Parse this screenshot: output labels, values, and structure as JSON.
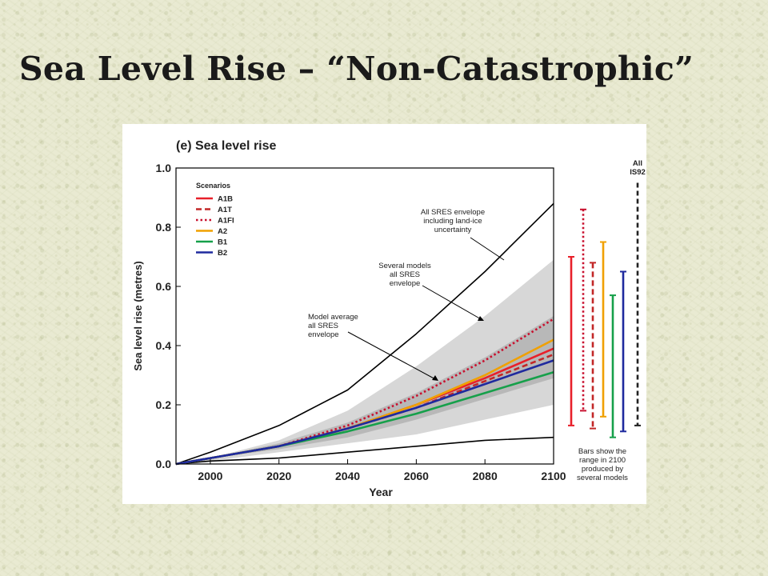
{
  "slide": {
    "title": "Sea Level Rise – “Non-Catastrophic”"
  },
  "chart_data": {
    "type": "line",
    "title": "(e) Sea level rise",
    "xlabel": "Year",
    "ylabel": "Sea level rise (metres)",
    "xlim": [
      1990,
      2100
    ],
    "ylim": [
      0,
      1.0
    ],
    "x_ticks": [
      2000,
      2020,
      2040,
      2060,
      2080,
      2100
    ],
    "y_ticks": [
      "0.0",
      "0.2",
      "0.4",
      "0.6",
      "0.8",
      "1.0"
    ],
    "legend": {
      "title": "Scenarios",
      "placement": "top-left"
    },
    "series": [
      {
        "name": "A1B",
        "color": "#e8202a",
        "style": "solid",
        "x": [
          1990,
          2000,
          2020,
          2040,
          2060,
          2080,
          2100
        ],
        "y": [
          0,
          0.02,
          0.06,
          0.12,
          0.2,
          0.29,
          0.39
        ]
      },
      {
        "name": "A1T",
        "color": "#c22727",
        "style": "dashed",
        "x": [
          1990,
          2000,
          2020,
          2040,
          2060,
          2080,
          2100
        ],
        "y": [
          0,
          0.02,
          0.06,
          0.12,
          0.19,
          0.28,
          0.37
        ]
      },
      {
        "name": "A1FI",
        "color": "#c8102e",
        "style": "dotted",
        "x": [
          1990,
          2000,
          2020,
          2040,
          2060,
          2080,
          2100
        ],
        "y": [
          0,
          0.02,
          0.06,
          0.13,
          0.23,
          0.35,
          0.49
        ]
      },
      {
        "name": "A2",
        "color": "#f0a000",
        "style": "solid",
        "x": [
          1990,
          2000,
          2020,
          2040,
          2060,
          2080,
          2100
        ],
        "y": [
          0,
          0.02,
          0.06,
          0.12,
          0.2,
          0.3,
          0.42
        ]
      },
      {
        "name": "B1",
        "color": "#16a04a",
        "style": "solid",
        "x": [
          1990,
          2000,
          2020,
          2040,
          2060,
          2080,
          2100
        ],
        "y": [
          0,
          0.02,
          0.06,
          0.11,
          0.17,
          0.24,
          0.31
        ]
      },
      {
        "name": "B2",
        "color": "#1f2a9e",
        "style": "solid",
        "x": [
          1990,
          2000,
          2020,
          2040,
          2060,
          2080,
          2100
        ],
        "y": [
          0,
          0.02,
          0.06,
          0.12,
          0.19,
          0.27,
          0.35
        ]
      }
    ],
    "envelope_outer_upper": {
      "x": [
        1990,
        2000,
        2020,
        2040,
        2060,
        2080,
        2100
      ],
      "y": [
        0,
        0.04,
        0.13,
        0.25,
        0.44,
        0.65,
        0.88
      ]
    },
    "envelope_outer_lower": {
      "x": [
        1990,
        2000,
        2020,
        2040,
        2060,
        2080,
        2100
      ],
      "y": [
        0,
        0.01,
        0.02,
        0.04,
        0.06,
        0.08,
        0.09
      ]
    },
    "envelope_models": {
      "x": [
        1990,
        2000,
        2020,
        2040,
        2060,
        2080,
        2100
      ],
      "upper": [
        0,
        0.02,
        0.08,
        0.18,
        0.33,
        0.5,
        0.69
      ],
      "lower": [
        0,
        0.01,
        0.04,
        0.07,
        0.1,
        0.15,
        0.2
      ]
    },
    "envelope_average": {
      "x": [
        1990,
        2000,
        2020,
        2040,
        2060,
        2080,
        2100
      ],
      "upper": [
        0,
        0.02,
        0.07,
        0.14,
        0.24,
        0.36,
        0.5
      ],
      "lower": [
        0,
        0.02,
        0.05,
        0.09,
        0.15,
        0.22,
        0.29
      ]
    },
    "annotations": {
      "outer": [
        "All SRES envelope",
        "including land-ice",
        "uncertainty"
      ],
      "models": [
        "Several models",
        "all SRES",
        "envelope"
      ],
      "average": [
        "Model average",
        "all SRES",
        "envelope"
      ]
    },
    "range_bars_2100": [
      {
        "name": "A1B",
        "color": "#e8202a",
        "style": "solid",
        "min": 0.13,
        "max": 0.7
      },
      {
        "name": "A1FI",
        "color": "#c8102e",
        "style": "dotted",
        "min": 0.18,
        "max": 0.86
      },
      {
        "name": "A1T",
        "color": "#c22727",
        "style": "dashed",
        "min": 0.12,
        "max": 0.68
      },
      {
        "name": "A2",
        "color": "#f0a000",
        "style": "solid",
        "min": 0.16,
        "max": 0.75
      },
      {
        "name": "B1",
        "color": "#16a04a",
        "style": "solid",
        "min": 0.09,
        "max": 0.57
      },
      {
        "name": "B2",
        "color": "#1f2a9e",
        "style": "solid",
        "min": 0.11,
        "max": 0.65
      }
    ],
    "is92_bar": {
      "label_lines": [
        "All",
        "IS92"
      ],
      "color": "#222222",
      "style": "dashed",
      "min": 0.13,
      "max": 0.95
    },
    "bars_note": [
      "Bars show the",
      "range in 2100",
      "produced by",
      "several models"
    ]
  }
}
